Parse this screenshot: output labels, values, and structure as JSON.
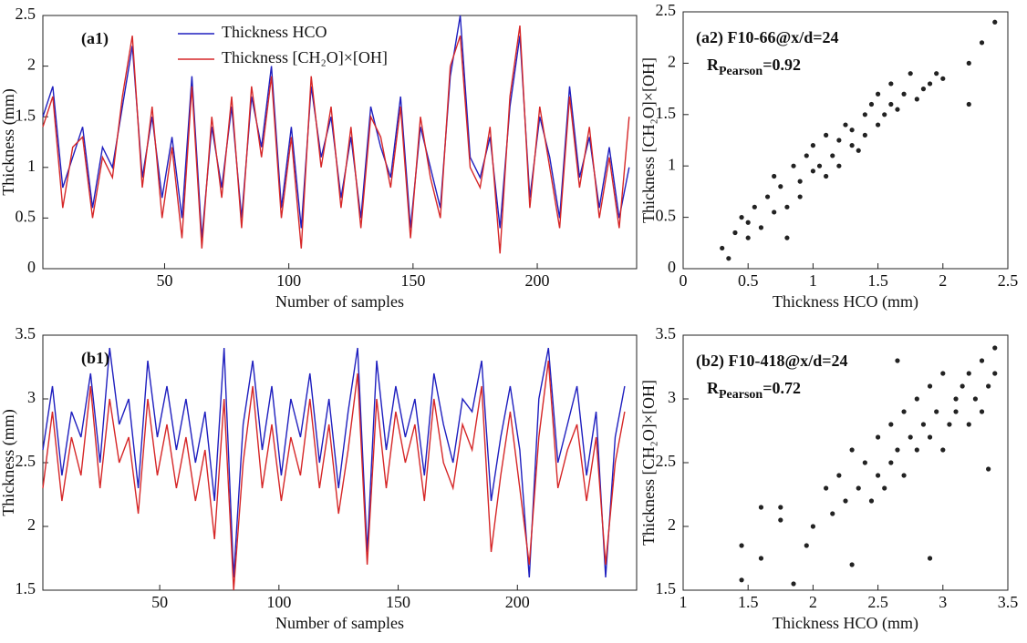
{
  "chart_data": [
    {
      "type": "line",
      "title": "(a1)",
      "xlabel": "Number of samples",
      "ylabel": "Thickness (mm)",
      "xlim": [
        1,
        240
      ],
      "ylim": [
        0,
        2.5
      ],
      "xticks": [
        50,
        100,
        150,
        200
      ],
      "yticks": [
        0,
        0.5,
        1,
        1.5,
        2,
        2.5
      ],
      "legend": true,
      "x": [
        1,
        5,
        9,
        13,
        17,
        21,
        25,
        29,
        33,
        37,
        41,
        45,
        49,
        53,
        57,
        61,
        65,
        69,
        73,
        77,
        81,
        85,
        89,
        93,
        97,
        101,
        105,
        109,
        113,
        117,
        121,
        125,
        129,
        133,
        137,
        141,
        145,
        149,
        153,
        157,
        161,
        165,
        169,
        173,
        177,
        181,
        185,
        189,
        193,
        197,
        201,
        205,
        209,
        213,
        217,
        221,
        225,
        229,
        233,
        237
      ],
      "series": [
        {
          "name": "Thickness  HCO",
          "color": "#1f1fbf",
          "values": [
            1.5,
            1.8,
            0.8,
            1.1,
            1.4,
            0.6,
            1.2,
            1.0,
            1.6,
            2.2,
            0.9,
            1.5,
            0.7,
            1.3,
            0.5,
            1.9,
            0.3,
            1.4,
            0.8,
            1.6,
            0.5,
            1.7,
            1.2,
            2.0,
            0.6,
            1.4,
            0.4,
            1.8,
            1.1,
            1.5,
            0.7,
            1.3,
            0.5,
            1.6,
            1.2,
            0.9,
            1.7,
            0.4,
            1.4,
            1.0,
            0.6,
            1.9,
            2.5,
            1.1,
            0.9,
            1.3,
            0.4,
            1.6,
            2.3,
            0.7,
            1.5,
            1.1,
            0.5,
            1.8,
            0.9,
            1.3,
            0.6,
            1.2,
            0.5,
            1.0
          ]
        },
        {
          "name": "Thickness [CH₂O]×[OH]",
          "color": "#d62728",
          "values": [
            1.4,
            1.7,
            0.6,
            1.2,
            1.3,
            0.5,
            1.1,
            0.9,
            1.7,
            2.3,
            0.8,
            1.6,
            0.5,
            1.2,
            0.3,
            1.8,
            0.2,
            1.5,
            0.7,
            1.7,
            0.4,
            1.8,
            1.1,
            1.9,
            0.5,
            1.3,
            0.2,
            1.9,
            1.0,
            1.6,
            0.6,
            1.4,
            0.4,
            1.5,
            1.3,
            0.8,
            1.6,
            0.3,
            1.5,
            0.9,
            0.5,
            2.0,
            2.3,
            1.0,
            0.8,
            1.4,
            0.15,
            1.7,
            2.4,
            0.6,
            1.6,
            1.0,
            0.4,
            1.7,
            0.8,
            1.4,
            0.5,
            1.1,
            0.4,
            1.5
          ]
        }
      ]
    },
    {
      "type": "line",
      "title": "(b1)",
      "xlabel": "Number of samples",
      "ylabel": "Thickness (mm)",
      "xlim": [
        1,
        250
      ],
      "ylim": [
        1.5,
        3.5
      ],
      "xticks": [
        50,
        100,
        150,
        200
      ],
      "yticks": [
        1.5,
        2,
        2.5,
        3,
        3.5
      ],
      "legend": false,
      "x": [
        1,
        5,
        9,
        13,
        17,
        21,
        25,
        29,
        33,
        37,
        41,
        45,
        49,
        53,
        57,
        61,
        65,
        69,
        73,
        77,
        81,
        85,
        89,
        93,
        97,
        101,
        105,
        109,
        113,
        117,
        121,
        125,
        129,
        133,
        137,
        141,
        145,
        149,
        153,
        157,
        161,
        165,
        169,
        173,
        177,
        181,
        185,
        189,
        193,
        197,
        201,
        205,
        209,
        213,
        217,
        221,
        225,
        229,
        233,
        237,
        241,
        245
      ],
      "series": [
        {
          "name": "Thickness  HCO",
          "color": "#1f1fbf",
          "values": [
            2.6,
            3.1,
            2.4,
            2.9,
            2.7,
            3.2,
            2.5,
            3.4,
            2.8,
            3.0,
            2.3,
            3.3,
            2.7,
            3.1,
            2.6,
            3.0,
            2.5,
            2.9,
            2.2,
            3.4,
            1.6,
            2.8,
            3.3,
            2.6,
            3.1,
            2.4,
            3.0,
            2.7,
            3.2,
            2.5,
            3.0,
            2.3,
            2.9,
            3.4,
            1.8,
            3.3,
            2.6,
            3.1,
            2.7,
            3.0,
            2.4,
            3.2,
            2.8,
            2.5,
            3.0,
            2.9,
            3.3,
            2.2,
            2.7,
            3.1,
            2.6,
            1.6,
            3.0,
            3.4,
            2.5,
            2.8,
            3.1,
            2.4,
            2.9,
            1.6,
            2.7,
            3.1
          ]
        },
        {
          "name": "Thickness [CH₂O]×[OH]",
          "color": "#d62728",
          "values": [
            2.3,
            2.9,
            2.2,
            2.7,
            2.4,
            3.1,
            2.3,
            3.0,
            2.5,
            2.7,
            2.1,
            3.0,
            2.4,
            2.8,
            2.3,
            2.7,
            2.2,
            2.6,
            1.9,
            3.0,
            1.5,
            2.5,
            3.1,
            2.3,
            2.8,
            2.2,
            2.7,
            2.4,
            3.0,
            2.3,
            2.8,
            2.1,
            2.6,
            3.2,
            1.7,
            3.0,
            2.3,
            2.9,
            2.5,
            2.8,
            2.2,
            3.0,
            2.5,
            2.3,
            2.8,
            2.6,
            3.1,
            1.8,
            2.4,
            2.9,
            2.3,
            1.7,
            2.7,
            3.3,
            2.3,
            2.6,
            2.8,
            2.2,
            2.7,
            1.7,
            2.5,
            2.9
          ]
        }
      ]
    },
    {
      "type": "scatter",
      "title": "(a2) F10-66@x/d=24",
      "r_pearson": {
        "symbol": "R",
        "subscript": "Pearson",
        "text": "=0.92"
      },
      "xlabel": "Thickness  HCO (mm)",
      "ylabel": "Thickness [CH₂O]×[OH]",
      "xlim": [
        0,
        2.5
      ],
      "ylim": [
        0,
        2.5
      ],
      "xticks": [
        0,
        0.5,
        1,
        1.5,
        2,
        2.5
      ],
      "yticks": [
        0,
        0.5,
        1,
        1.5,
        2,
        2.5
      ],
      "color": "#222222",
      "x": [
        0.3,
        0.35,
        0.4,
        0.45,
        0.5,
        0.5,
        0.55,
        0.6,
        0.65,
        0.7,
        0.7,
        0.75,
        0.8,
        0.85,
        0.9,
        0.9,
        0.95,
        1.0,
        1.0,
        1.05,
        1.1,
        1.1,
        1.15,
        1.2,
        1.2,
        1.25,
        1.3,
        1.3,
        1.35,
        1.4,
        1.4,
        1.45,
        1.5,
        1.5,
        1.55,
        1.6,
        1.6,
        1.65,
        1.7,
        1.75,
        1.8,
        1.85,
        1.9,
        1.95,
        2.0,
        2.2,
        2.2,
        2.3,
        2.4,
        0.8
      ],
      "values": [
        0.2,
        0.1,
        0.35,
        0.5,
        0.3,
        0.45,
        0.6,
        0.4,
        0.7,
        0.55,
        0.9,
        0.8,
        0.6,
        1.0,
        0.85,
        0.7,
        1.1,
        0.95,
        1.2,
        1.0,
        0.9,
        1.3,
        1.1,
        1.25,
        1.0,
        1.4,
        1.2,
        1.35,
        1.15,
        1.5,
        1.3,
        1.6,
        1.4,
        1.7,
        1.5,
        1.6,
        1.8,
        1.55,
        1.7,
        1.9,
        1.65,
        1.75,
        1.8,
        1.9,
        1.85,
        2.0,
        1.6,
        2.2,
        2.4,
        0.3
      ]
    },
    {
      "type": "scatter",
      "title": "(b2) F10-418@x/d=24",
      "r_pearson": {
        "symbol": "R",
        "subscript": "Pearson",
        "text": "=0.72"
      },
      "xlabel": "Thickness  HCO (mm)",
      "ylabel": "Thickness [CH₂O]×[OH]",
      "xlim": [
        1,
        3.5
      ],
      "ylim": [
        1.5,
        3.5
      ],
      "xticks": [
        1,
        1.5,
        2,
        2.5,
        3,
        3.5
      ],
      "yticks": [
        1.5,
        2,
        2.5,
        3,
        3.5
      ],
      "color": "#222222",
      "x": [
        1.45,
        1.45,
        1.6,
        1.6,
        1.75,
        1.75,
        1.85,
        1.95,
        2.0,
        2.1,
        2.15,
        2.2,
        2.25,
        2.3,
        2.35,
        2.4,
        2.45,
        2.5,
        2.5,
        2.55,
        2.6,
        2.6,
        2.65,
        2.7,
        2.7,
        2.75,
        2.8,
        2.8,
        2.85,
        2.9,
        2.9,
        2.95,
        3.0,
        3.0,
        3.05,
        3.1,
        3.1,
        3.15,
        3.2,
        3.2,
        3.25,
        3.3,
        3.3,
        3.35,
        3.4,
        3.4,
        2.3,
        2.9,
        3.35,
        2.65
      ],
      "values": [
        1.85,
        1.58,
        2.15,
        1.75,
        2.15,
        2.05,
        1.55,
        1.85,
        2.0,
        2.3,
        2.1,
        2.4,
        2.2,
        2.6,
        2.3,
        2.5,
        2.2,
        2.7,
        2.4,
        2.3,
        2.8,
        2.5,
        2.6,
        2.9,
        2.4,
        2.7,
        3.0,
        2.6,
        2.8,
        3.1,
        2.7,
        2.9,
        3.2,
        2.6,
        2.8,
        3.0,
        2.9,
        3.1,
        3.2,
        2.8,
        3.0,
        3.3,
        2.9,
        3.1,
        3.4,
        3.2,
        1.7,
        1.75,
        2.45,
        3.3
      ]
    }
  ]
}
